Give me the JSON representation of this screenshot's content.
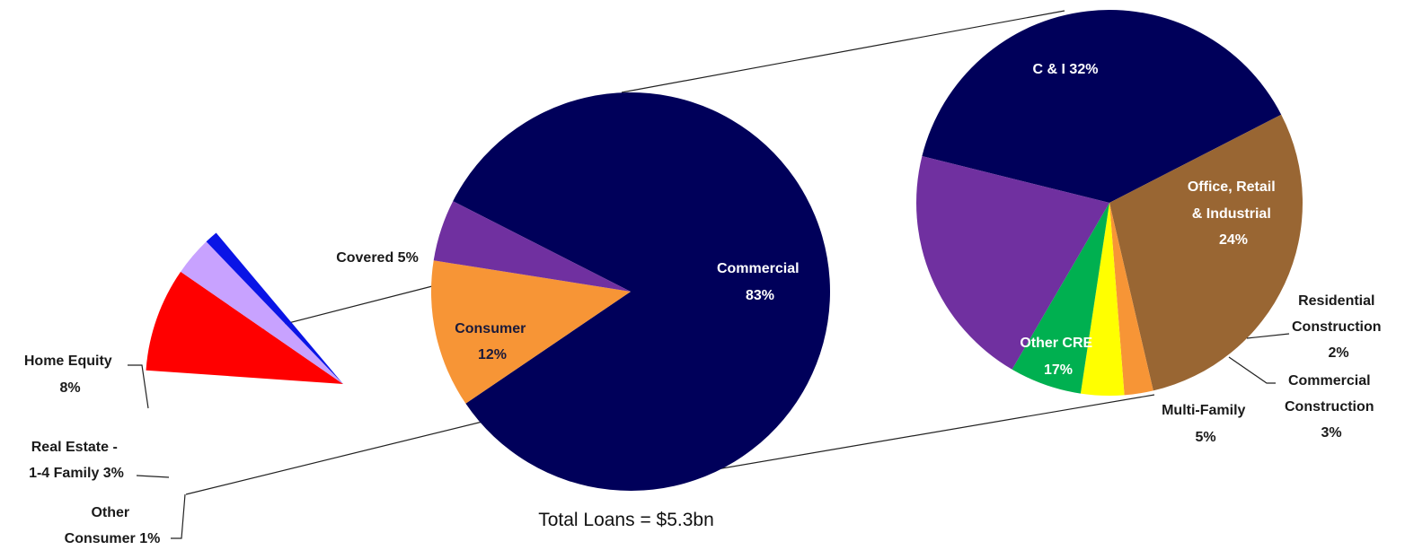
{
  "chart_data": [
    {
      "type": "pie",
      "name": "consumer",
      "slices": [
        {
          "label_lines": [
            "Home Equity",
            "8%"
          ],
          "value": 8,
          "color": "#ff0000"
        },
        {
          "label_lines": [
            "Real Estate  -",
            "1-4 Family 3%"
          ],
          "value": 3,
          "color": "#c8a2ff"
        },
        {
          "label_lines": [
            "Other",
            "Consumer 1%"
          ],
          "value": 1,
          "color": "#0a14e6"
        }
      ]
    },
    {
      "type": "pie",
      "name": "total",
      "slices": [
        {
          "label_lines": [
            "Commercial",
            "83%"
          ],
          "value": 83,
          "color": "#00005a"
        },
        {
          "label_lines": [
            "Consumer",
            "12%"
          ],
          "value": 12,
          "color": "#f79536"
        },
        {
          "label_lines": [
            "Covered 5%"
          ],
          "value": 5,
          "color": "#7030a0"
        }
      ],
      "footer": "Total Loans = $5.3bn"
    },
    {
      "type": "pie",
      "name": "commercial",
      "slices": [
        {
          "label_lines": [
            "C & I 32%"
          ],
          "value": 32,
          "color": "#00005a"
        },
        {
          "label_lines": [
            "Office, Retail",
            "& Industrial",
            "24%"
          ],
          "value": 24,
          "color": "#996633"
        },
        {
          "label_lines": [
            "Residential",
            "Construction",
            "2%"
          ],
          "value": 2,
          "color": "#f79536"
        },
        {
          "label_lines": [
            "Commercial",
            "Construction",
            "3%"
          ],
          "value": 3,
          "color": "#ffff00"
        },
        {
          "label_lines": [
            "Multi-Family",
            "5%"
          ],
          "value": 5,
          "color": "#00b050"
        },
        {
          "label_lines": [
            "Other CRE",
            "17%"
          ],
          "value": 17,
          "color": "#7030a0"
        }
      ]
    }
  ]
}
